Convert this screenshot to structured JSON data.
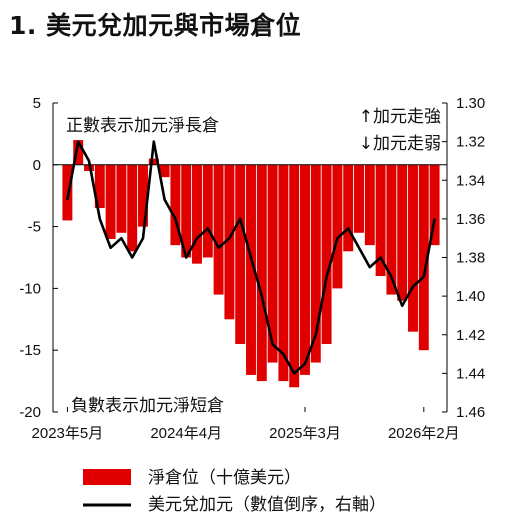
{
  "chart_data": {
    "type": "bar+line",
    "title": "1. 美元兌加元與市場倉位",
    "x_ticks": [
      "2023年5月",
      "2024年4月",
      "2025年3月",
      "2026年2月"
    ],
    "x_ticks_at": [
      "2023-05",
      "2024-04",
      "2025-03",
      "2026-02"
    ],
    "y_left": {
      "lim": [
        -20,
        5
      ],
      "ticks": [
        5,
        0,
        -5,
        -10,
        -15,
        -20
      ]
    },
    "y_right": {
      "lim": [
        1.3,
        1.46
      ],
      "inverted": true,
      "ticks": [
        "1.30",
        "1.32",
        "1.34",
        "1.36",
        "1.38",
        "1.40",
        "1.42",
        "1.44",
        "1.46"
      ]
    },
    "annotations": {
      "net_long": "正數表示加元淨長倉",
      "net_short": "負數表示加元淨短倉",
      "up": "↑加元走強",
      "down": "↓加元走弱"
    },
    "legend": [
      {
        "name": "淨倉位（十億美元）",
        "color": "#e00000",
        "kind": "bar"
      },
      {
        "name": "美元兌加元（數值倒序，右軸）",
        "color": "#000000",
        "kind": "line"
      }
    ],
    "dates": [
      "2023-05",
      "2023-06",
      "2023-07",
      "2023-08",
      "2023-09",
      "2023-10",
      "2023-11",
      "2023-12",
      "2024-01",
      "2024-02",
      "2024-03",
      "2024-04",
      "2024-05",
      "2024-06",
      "2024-07",
      "2024-08",
      "2024-09",
      "2024-10",
      "2024-11",
      "2024-12",
      "2025-01",
      "2025-02",
      "2025-03",
      "2025-04",
      "2025-05",
      "2025-06",
      "2025-07",
      "2025-08",
      "2025-09",
      "2025-10",
      "2025-11",
      "2025-12",
      "2026-01",
      "2026-02",
      "2026-03"
    ],
    "series": [
      {
        "name": "淨倉位（十億美元）",
        "axis": "left",
        "values": [
          -4.5,
          2.0,
          -0.5,
          -3.5,
          -6.0,
          -5.5,
          -7.0,
          -5.0,
          0.5,
          -1.0,
          -6.5,
          -7.5,
          -8.0,
          -7.5,
          -10.5,
          -12.5,
          -14.5,
          -17.0,
          -17.5,
          -16.0,
          -17.5,
          -18.0,
          -17.0,
          -16.0,
          -14.5,
          -10.0,
          -7.0,
          -5.5,
          -6.5,
          -9.0,
          -10.5,
          -11.0,
          -13.5,
          -15.0,
          -6.5
        ]
      },
      {
        "name": "美元兌加元（數值倒序，右軸）",
        "axis": "right",
        "values": [
          1.35,
          1.32,
          1.33,
          1.36,
          1.375,
          1.37,
          1.38,
          1.37,
          1.32,
          1.35,
          1.36,
          1.38,
          1.37,
          1.365,
          1.375,
          1.37,
          1.36,
          1.38,
          1.4,
          1.425,
          1.43,
          1.44,
          1.435,
          1.42,
          1.39,
          1.37,
          1.365,
          1.375,
          1.385,
          1.38,
          1.39,
          1.405,
          1.395,
          1.39,
          1.36
        ]
      }
    ]
  }
}
